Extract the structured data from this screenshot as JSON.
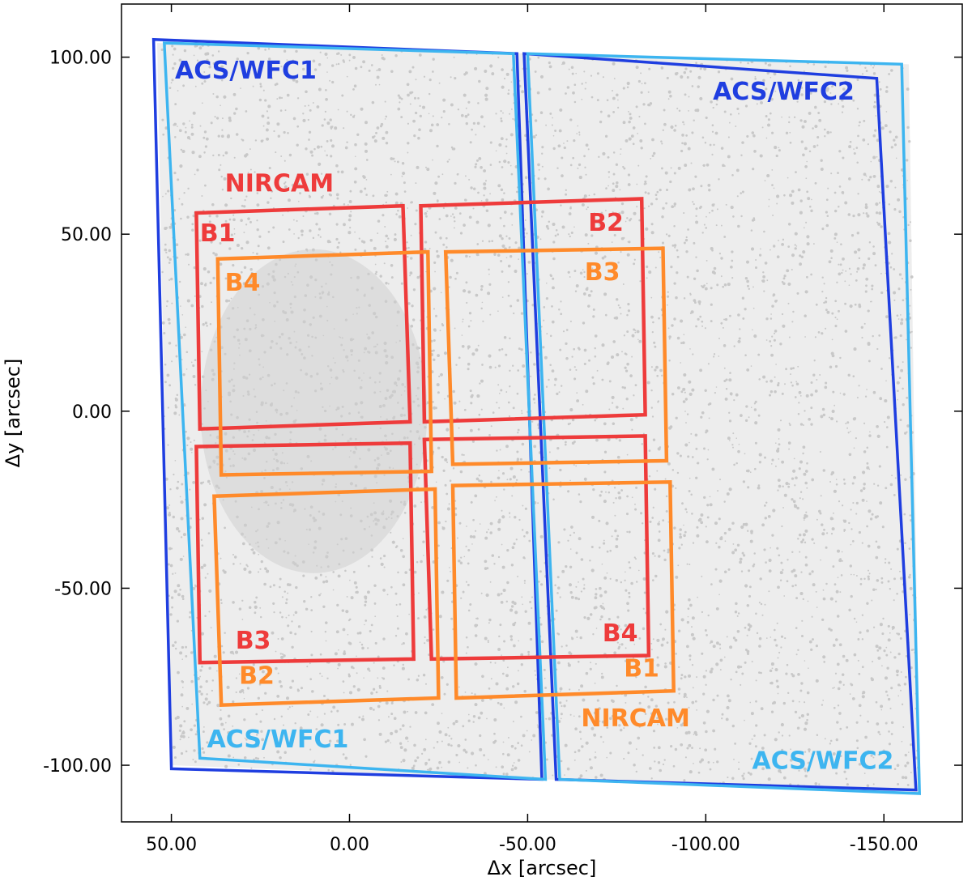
{
  "chart_data": {
    "type": "scatter",
    "title": "",
    "xlabel": "Δx  [arcsec]",
    "ylabel": "Δy  [arcsec]",
    "xlim": [
      64,
      -172
    ],
    "ylim": [
      -116,
      115
    ],
    "x_inverted": true,
    "grid": false,
    "xticks": [
      {
        "value": 50,
        "label": "50.00"
      },
      {
        "value": 0,
        "label": "0.00"
      },
      {
        "value": -50,
        "label": "-50.00"
      },
      {
        "value": -100,
        "label": "-100.00"
      },
      {
        "value": -150,
        "label": "-150.00"
      }
    ],
    "yticks": [
      {
        "value": 100,
        "label": "100.00"
      },
      {
        "value": 50,
        "label": "50.00"
      },
      {
        "value": 0,
        "label": "0.00"
      },
      {
        "value": -50,
        "label": "-50.00"
      },
      {
        "value": -100,
        "label": "-100.00"
      }
    ],
    "background_stars": {
      "color": "#c8c8c8",
      "region": [
        [
          54,
          104
        ],
        [
          -157,
          98
        ],
        [
          -160,
          -108
        ],
        [
          50,
          -100
        ]
      ]
    },
    "footprints": [
      {
        "name": "ACS/WFC1 (dark)",
        "color": "#1f3ee0",
        "polygon": [
          [
            55,
            105
          ],
          [
            -47,
            101
          ],
          [
            -54,
            -104
          ],
          [
            50,
            -101
          ]
        ]
      },
      {
        "name": "ACS/WFC2 (dark)",
        "color": "#1f3ee0",
        "polygon": [
          [
            -49,
            101
          ],
          [
            -148,
            94
          ],
          [
            -159,
            -107
          ],
          [
            -58,
            -104
          ]
        ]
      },
      {
        "name": "ACS/WFC1 (light)",
        "color": "#3db5f0",
        "polygon": [
          [
            52,
            104
          ],
          [
            -46,
            101
          ],
          [
            -55,
            -104
          ],
          [
            42,
            -98
          ]
        ]
      },
      {
        "name": "ACS/WFC2 (light)",
        "color": "#3db5f0",
        "polygon": [
          [
            -50,
            101
          ],
          [
            -155,
            98
          ],
          [
            -160,
            -108
          ],
          [
            -59,
            -104
          ]
        ]
      },
      {
        "name": "NIRCAM red B1",
        "color": "#ee3b3b",
        "polygon": [
          [
            43,
            56
          ],
          [
            -15,
            58
          ],
          [
            -17,
            -3
          ],
          [
            42,
            -5
          ]
        ]
      },
      {
        "name": "NIRCAM red B2",
        "color": "#ee3b3b",
        "polygon": [
          [
            -20,
            58
          ],
          [
            -82,
            60
          ],
          [
            -83,
            -1
          ],
          [
            -21,
            -3
          ]
        ]
      },
      {
        "name": "NIRCAM red B3",
        "color": "#ee3b3b",
        "polygon": [
          [
            43,
            -10
          ],
          [
            -17,
            -9
          ],
          [
            -18,
            -70
          ],
          [
            42,
            -71
          ]
        ]
      },
      {
        "name": "NIRCAM red B4",
        "color": "#ee3b3b",
        "polygon": [
          [
            -21,
            -8
          ],
          [
            -83,
            -7
          ],
          [
            -84,
            -69
          ],
          [
            -23,
            -70
          ]
        ]
      },
      {
        "name": "NIRCAM orange B4",
        "color": "#ff8a2a",
        "polygon": [
          [
            37,
            43
          ],
          [
            -22,
            45
          ],
          [
            -23,
            -17
          ],
          [
            36,
            -18
          ]
        ]
      },
      {
        "name": "NIRCAM orange B3",
        "color": "#ff8a2a",
        "polygon": [
          [
            -27,
            45
          ],
          [
            -88,
            46
          ],
          [
            -89,
            -14
          ],
          [
            -29,
            -15
          ]
        ]
      },
      {
        "name": "NIRCAM orange B2",
        "color": "#ff8a2a",
        "polygon": [
          [
            38,
            -24
          ],
          [
            -24,
            -22
          ],
          [
            -25,
            -81
          ],
          [
            36,
            -83
          ]
        ]
      },
      {
        "name": "NIRCAM orange B1",
        "color": "#ff8a2a",
        "polygon": [
          [
            -29,
            -21
          ],
          [
            -90,
            -20
          ],
          [
            -91,
            -79
          ],
          [
            -30,
            -81
          ]
        ]
      }
    ],
    "annotations": [
      {
        "text": "ACS/WFC1",
        "color": "#1f3ee0",
        "x": 49,
        "y": 94
      },
      {
        "text": "ACS/WFC2",
        "color": "#1f3ee0",
        "x": -102,
        "y": 88
      },
      {
        "text": "NIRCAM",
        "color": "#ee3b3b",
        "x": 35,
        "y": 62
      },
      {
        "text": "B1",
        "color": "#ee3b3b",
        "x": 42,
        "y": 48
      },
      {
        "text": "B2",
        "color": "#ee3b3b",
        "x": -67,
        "y": 51
      },
      {
        "text": "B4",
        "color": "#ff8a2a",
        "x": 35,
        "y": 34
      },
      {
        "text": "B3",
        "color": "#ff8a2a",
        "x": -66,
        "y": 37
      },
      {
        "text": "B3",
        "color": "#ee3b3b",
        "x": 32,
        "y": -67
      },
      {
        "text": "B4",
        "color": "#ee3b3b",
        "x": -71,
        "y": -65
      },
      {
        "text": "B2",
        "color": "#ff8a2a",
        "x": 31,
        "y": -77
      },
      {
        "text": "B1",
        "color": "#ff8a2a",
        "x": -77,
        "y": -75
      },
      {
        "text": "NIRCAM",
        "color": "#ff8a2a",
        "x": -65,
        "y": -89
      },
      {
        "text": "ACS/WFC1",
        "color": "#3db5f0",
        "x": 40,
        "y": -95
      },
      {
        "text": "ACS/WFC2",
        "color": "#3db5f0",
        "x": -113,
        "y": -101
      }
    ]
  }
}
